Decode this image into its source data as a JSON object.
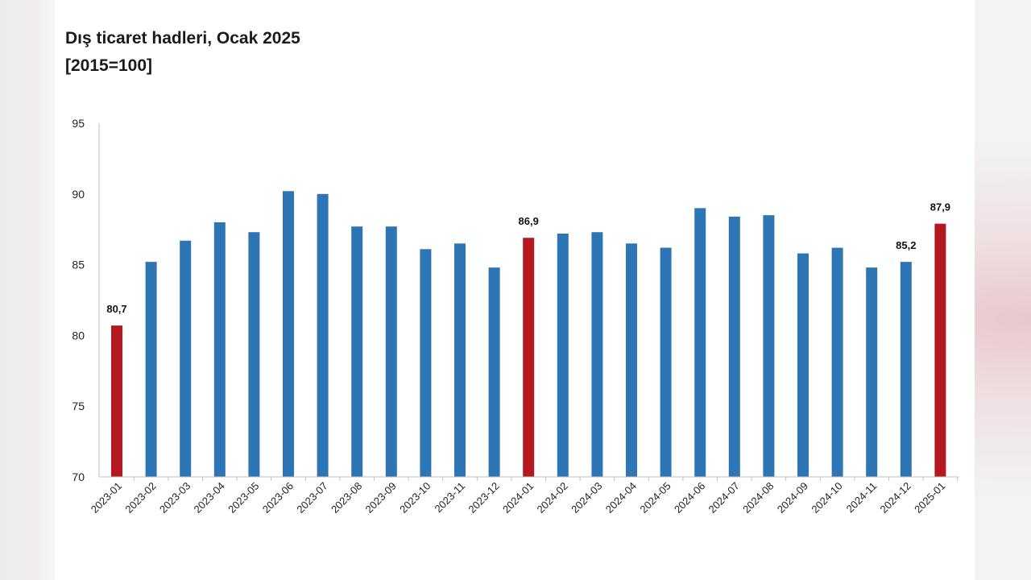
{
  "chart_data": {
    "type": "bar",
    "title": "Dış ticaret hadleri, Ocak 2025",
    "subtitle": "[2015=100]",
    "categories": [
      "2023-01",
      "2023-02",
      "2023-03",
      "2023-04",
      "2023-05",
      "2023-06",
      "2023-07",
      "2023-08",
      "2023-09",
      "2023-10",
      "2023-11",
      "2023-12",
      "2024-01",
      "2024-02",
      "2024-03",
      "2024-04",
      "2024-05",
      "2024-06",
      "2024-07",
      "2024-08",
      "2024-09",
      "2024-10",
      "2024-11",
      "2024-12",
      "2025-01"
    ],
    "values": [
      80.7,
      85.2,
      86.7,
      88.0,
      87.3,
      90.2,
      90.0,
      87.7,
      87.7,
      86.1,
      86.5,
      84.8,
      86.9,
      87.2,
      87.3,
      86.5,
      86.2,
      89.0,
      88.4,
      88.5,
      85.8,
      86.2,
      84.8,
      85.2,
      87.9
    ],
    "highlighted": [
      "2023-01",
      "2024-01",
      "2025-01"
    ],
    "data_labels": {
      "2023-01": "80,7",
      "2024-01": "86,9",
      "2024-12": "85,2",
      "2025-01": "87,9"
    },
    "ylim": [
      70,
      95
    ],
    "yticks": [
      70,
      75,
      80,
      85,
      90,
      95
    ],
    "colors": {
      "bar": "#2e75b6",
      "highlight": "#b3191f"
    },
    "grid": false,
    "legend": "none"
  }
}
